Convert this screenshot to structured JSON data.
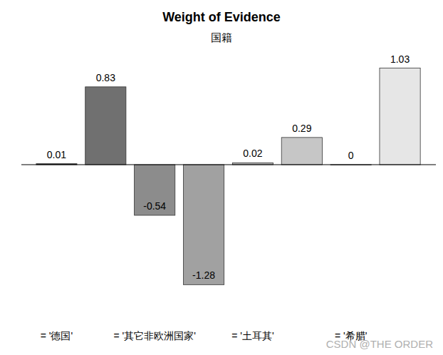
{
  "chart_data": {
    "type": "bar",
    "title": "Weight of Evidence",
    "subtitle": "国籍",
    "categories": [
      "= '德国'",
      null,
      "= '其它非欧洲国家'",
      null,
      "= '土耳其'",
      null,
      "= '希腊'",
      null
    ],
    "values": [
      0.01,
      0.83,
      -0.54,
      -1.28,
      0.02,
      0.29,
      0,
      1.03
    ],
    "colors": [
      "#1a1a1a",
      "#707070",
      "#8c8c8c",
      "#a1a1a1",
      "#b3b3b3",
      "#c6c6c6",
      "#d6d6d6",
      "#e6e6e6"
    ],
    "ylim": [
      -1.45,
      1.25
    ],
    "data_labels": true,
    "tick_labels": "x",
    "grid": false,
    "annotations": [
      "CSDN @THE ORDER"
    ]
  }
}
